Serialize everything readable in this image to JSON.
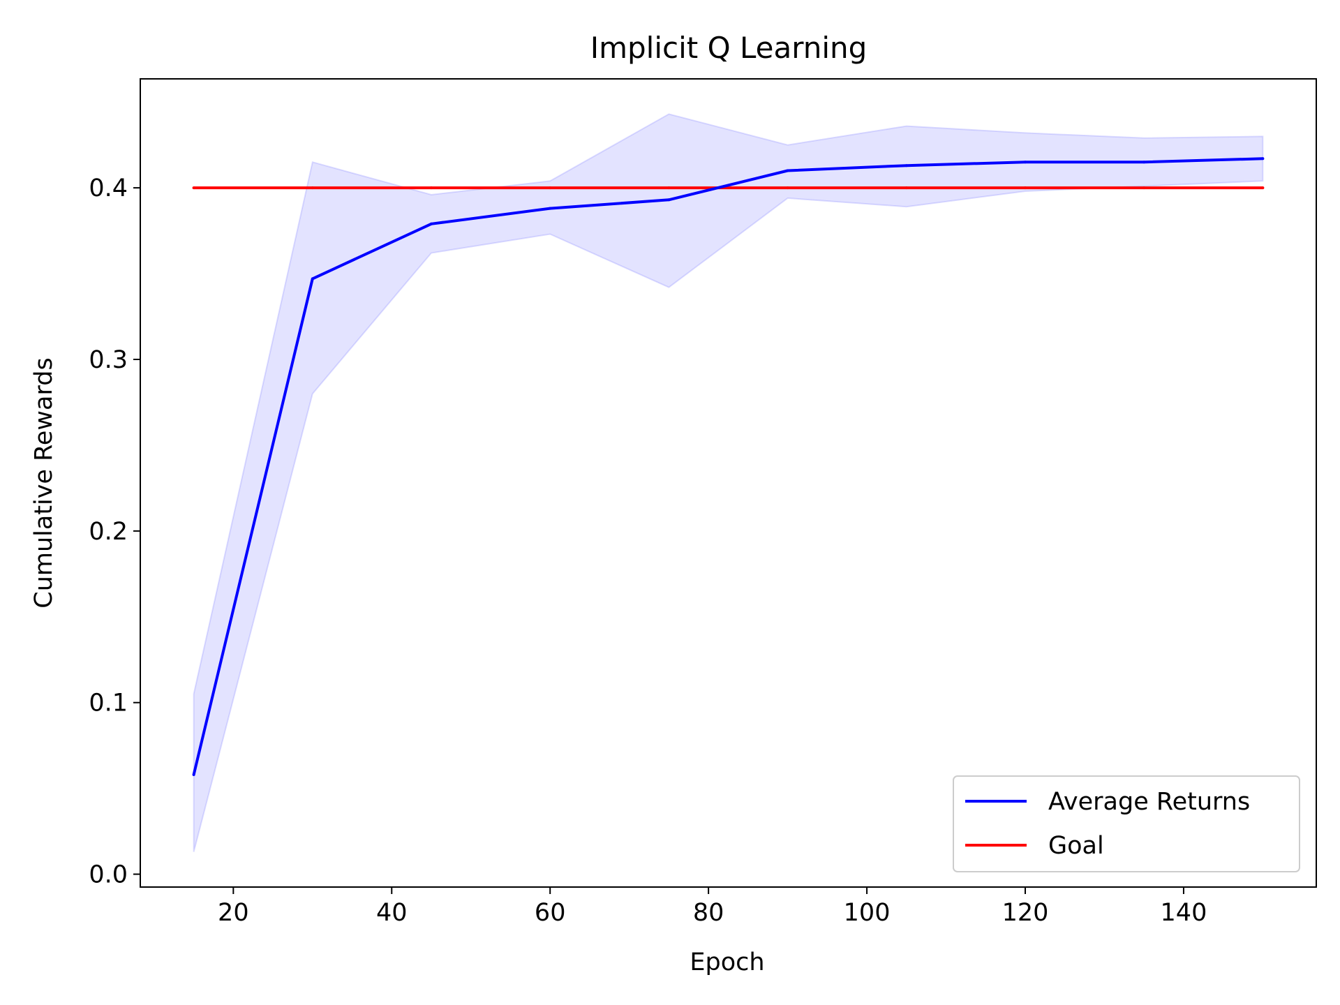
{
  "chart_data": {
    "type": "line",
    "title": "Implicit Q Learning",
    "xlabel": "Epoch",
    "ylabel": "Cumulative Rewards",
    "xlim": [
      8.25,
      156.75
    ],
    "ylim": [
      -0.0075,
      0.4635
    ],
    "x_ticks": [
      20,
      40,
      60,
      80,
      100,
      120,
      140
    ],
    "x_tick_labels": [
      "20",
      "40",
      "60",
      "80",
      "100",
      "120",
      "140"
    ],
    "y_ticks": [
      0.0,
      0.1,
      0.2,
      0.3,
      0.4
    ],
    "y_tick_labels": [
      "0.0",
      "0.1",
      "0.2",
      "0.3",
      "0.4"
    ],
    "grid": false,
    "legend_position": "lower-right",
    "x": [
      15,
      30,
      45,
      60,
      75,
      90,
      105,
      120,
      135,
      150
    ],
    "series": [
      {
        "name": "Average Returns",
        "color": "#0000ff",
        "values": [
          0.058,
          0.347,
          0.379,
          0.388,
          0.393,
          0.41,
          0.413,
          0.415,
          0.415,
          0.417
        ],
        "band_upper": [
          0.105,
          0.415,
          0.396,
          0.404,
          0.443,
          0.425,
          0.436,
          0.432,
          0.429,
          0.43
        ],
        "band_lower": [
          0.013,
          0.28,
          0.362,
          0.373,
          0.342,
          0.394,
          0.389,
          0.398,
          0.401,
          0.404
        ],
        "band_color": "#0000ff"
      },
      {
        "name": "Goal",
        "color": "#ff0000",
        "values": [
          0.4,
          0.4,
          0.4,
          0.4,
          0.4,
          0.4,
          0.4,
          0.4,
          0.4,
          0.4
        ]
      }
    ]
  }
}
